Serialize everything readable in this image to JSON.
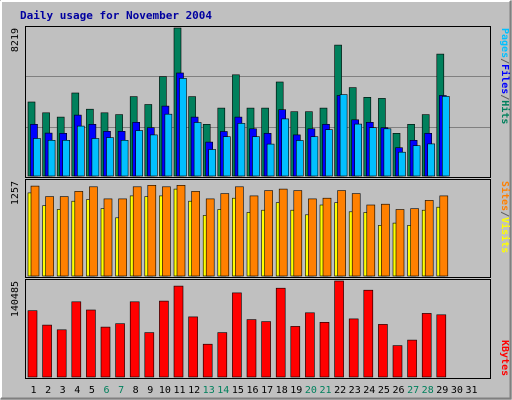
{
  "chart_data": {
    "type": "bar",
    "title": "Daily usage for November 2004",
    "categories": [
      "1",
      "2",
      "3",
      "4",
      "5",
      "6",
      "7",
      "8",
      "9",
      "10",
      "11",
      "12",
      "13",
      "14",
      "15",
      "16",
      "17",
      "18",
      "19",
      "20",
      "21",
      "22",
      "23",
      "24",
      "25",
      "26",
      "27",
      "28",
      "29",
      "30",
      "31"
    ],
    "weekend_days": [
      "6",
      "7",
      "13",
      "14",
      "20",
      "21",
      "27",
      "28"
    ],
    "panels": [
      {
        "id": "top",
        "max_label": "8219",
        "ymax": 8219,
        "legend": [
          "Pages",
          "/",
          "Files",
          "/",
          "Hits"
        ],
        "legend_colors": [
          "#00c0ff",
          "#606060",
          "#0000ff",
          "#606060",
          "#00805c"
        ],
        "series": [
          {
            "name": "Hits",
            "color": "#00805c",
            "values": [
              4110,
              3510,
              3270,
              4610,
              3710,
              3510,
              3410,
              4410,
              3970,
              5520,
              8219,
              4410,
              2870,
              3770,
              5620,
              3770,
              3770,
              5220,
              3570,
              3570,
              3770,
              7270,
              4910,
              4370,
              4310,
              2370,
              2870,
              3410,
              6770
            ]
          },
          {
            "name": "Files",
            "color": "#0000ff",
            "values": [
              2870,
              2380,
              2370,
              3380,
              2870,
              2480,
              2480,
              2980,
              2680,
              3880,
              5720,
              3270,
              1880,
              2470,
              3270,
              2620,
              2370,
              3680,
              2280,
              2620,
              2870,
              4470,
              3120,
              2980,
              2680,
              1570,
              1980,
              2370,
              4470
            ]
          },
          {
            "name": "Pages",
            "color": "#00c0ff",
            "values": [
              2080,
              1980,
              1980,
              2770,
              2080,
              2130,
              1980,
              2520,
              2280,
              3430,
              5420,
              2970,
              1470,
              2180,
              2920,
              2180,
              1770,
              3170,
              1970,
              2180,
              2570,
              4520,
              2880,
              2680,
              2620,
              1320,
              1680,
              1780,
              4420
            ]
          }
        ]
      },
      {
        "id": "middle",
        "max_label": "1257",
        "ymax": 1257,
        "legend": [
          "Sites",
          "/",
          "Visits"
        ],
        "legend_colors": [
          "#ff8000",
          "#606060",
          "#ffff00"
        ],
        "series": [
          {
            "name": "Visits",
            "color": "#ffff00",
            "values": [
              1100,
              930,
              880,
              990,
              1010,
              890,
              770,
              1060,
              1050,
              1060,
              1150,
              990,
              800,
              880,
              1030,
              840,
              870,
              970,
              870,
              810,
              940,
              970,
              850,
              840,
              670,
              700,
              670,
              870,
              910
            ]
          },
          {
            "name": "Sites",
            "color": "#ff8000",
            "values": [
              1190,
              1050,
              1050,
              1120,
              1180,
              1020,
              1020,
              1180,
              1200,
              1180,
              1200,
              1120,
              1020,
              1090,
              1180,
              1060,
              1130,
              1150,
              1130,
              1020,
              1030,
              1130,
              1090,
              940,
              950,
              880,
              890,
              1000,
              1060
            ]
          }
        ]
      },
      {
        "id": "bottom",
        "max_label": "140485",
        "ymax": 140485,
        "legend": [
          "KBytes"
        ],
        "legend_colors": [
          "#ff0000"
        ],
        "series": [
          {
            "name": "KBytes",
            "color": "#ff0000",
            "values": [
              97000,
              76000,
              69000,
              110000,
              98000,
              73000,
              78000,
              110000,
              65000,
              111000,
              133000,
              88000,
              48000,
              65000,
              123000,
              84000,
              81000,
              130000,
              74000,
              94000,
              80000,
              140485,
              85000,
              127000,
              77000,
              46000,
              54000,
              93000,
              91000
            ]
          }
        ]
      }
    ]
  }
}
